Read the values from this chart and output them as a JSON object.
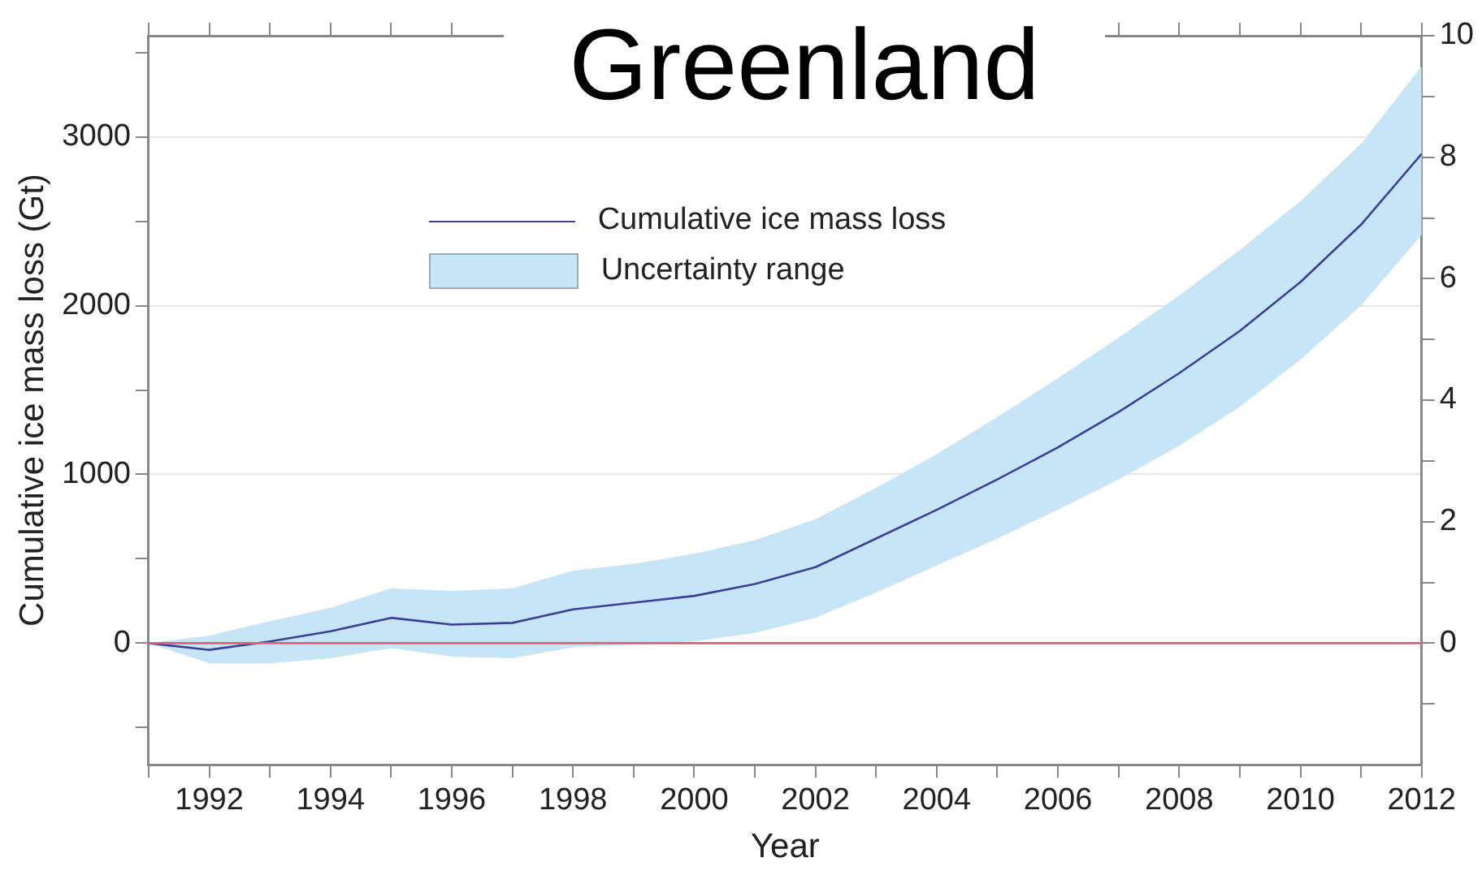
{
  "chart_data": {
    "type": "line",
    "title": "Greenland",
    "xlabel": "Year",
    "ylabel": "Cumulative ice mass loss (Gt)",
    "x": [
      1991,
      1992,
      1993,
      1994,
      1995,
      1996,
      1997,
      1998,
      1999,
      2000,
      2001,
      2002,
      2003,
      2004,
      2005,
      2006,
      2007,
      2008,
      2009,
      2010,
      2011,
      2012
    ],
    "series": [
      {
        "name": "Cumulative ice mass loss",
        "color": "#3b3f98",
        "values": [
          0,
          -40,
          10,
          70,
          150,
          110,
          120,
          200,
          240,
          280,
          350,
          450,
          620,
          790,
          970,
          1160,
          1370,
          1600,
          1850,
          2140,
          2480,
          2900
        ],
        "lower": [
          0,
          -120,
          -120,
          -90,
          -30,
          -80,
          -90,
          -25,
          -10,
          10,
          60,
          150,
          300,
          460,
          620,
          790,
          970,
          1170,
          1400,
          1680,
          2000,
          2420
        ],
        "upper": [
          0,
          45,
          130,
          210,
          325,
          310,
          325,
          430,
          470,
          530,
          610,
          735,
          920,
          1120,
          1340,
          1570,
          1810,
          2060,
          2330,
          2620,
          2960,
          3420
        ]
      }
    ],
    "annotations": [
      "Uncertainty range"
    ],
    "xlim": [
      1991,
      2012
    ],
    "xticks": [
      {
        "value": 1991,
        "label": null
      },
      1992,
      {
        "value": 1993,
        "label": null
      },
      1994,
      {
        "value": 1995,
        "label": null
      },
      1996,
      {
        "value": 1997,
        "label": null
      },
      1998,
      {
        "value": 1999,
        "label": null
      },
      2000,
      {
        "value": 2001,
        "label": null
      },
      2002,
      {
        "value": 2003,
        "label": null
      },
      2004,
      {
        "value": 2005,
        "label": null
      },
      2006,
      {
        "value": 2007,
        "label": null
      },
      2008,
      {
        "value": 2009,
        "label": null
      },
      2010,
      {
        "value": 2011,
        "label": null
      },
      2012
    ],
    "ylim": [
      -720,
      3600
    ],
    "yticks": [
      {
        "value": -500,
        "label": null
      },
      0,
      {
        "value": 500,
        "label": null
      },
      1000,
      {
        "value": 1500,
        "label": null
      },
      2000,
      {
        "value": 2500,
        "label": null
      },
      3000,
      {
        "value": 3500,
        "label": null
      }
    ],
    "y2lim": [
      -2,
      10
    ],
    "y2ticks": [
      {
        "value": -1,
        "label": null
      },
      0,
      {
        "value": 1,
        "label": null
      },
      2,
      {
        "value": 3,
        "label": null
      },
      4,
      {
        "value": 5,
        "label": null
      },
      6,
      {
        "value": 7,
        "label": null
      },
      8,
      {
        "value": 9,
        "label": null
      },
      10
    ],
    "ref_lines": [
      {
        "axis": "y",
        "value": 0,
        "color": "#e06070"
      }
    ],
    "grid": "y",
    "legend": "top",
    "marker": "none",
    "line_style": "solid"
  }
}
